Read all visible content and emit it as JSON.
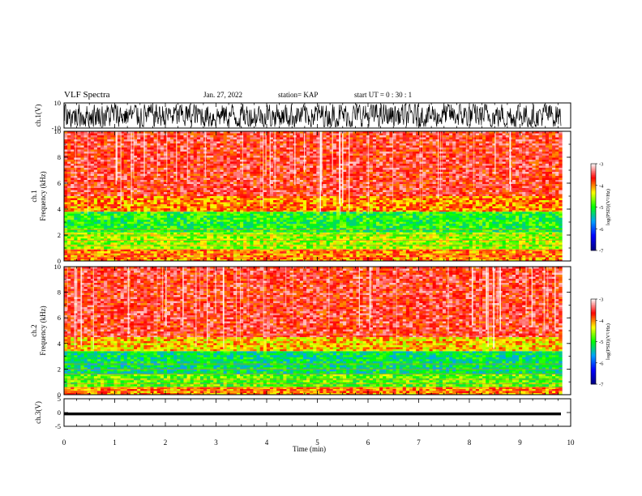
{
  "header": {
    "title": "VLF Spectra",
    "date": "Jan. 27, 2022",
    "station": "station= KAP",
    "start": "start UT =  0 : 30 : 1"
  },
  "chart_data": [
    {
      "type": "line",
      "panel": "ch1-waveform",
      "ylabel": "ch.1(V)",
      "ylim": [
        -10,
        10
      ],
      "yticks": [
        "10",
        "-10"
      ],
      "xlim": [
        0,
        10
      ],
      "description_values": {
        "amplitude_approx": [
          -9,
          9
        ]
      },
      "color": "#000000"
    },
    {
      "type": "heatmap",
      "panel": "ch1-spectrogram",
      "ylabel": "ch.1 Frequency (kHz)",
      "ylim": [
        0,
        10
      ],
      "yticks": [
        "0",
        "2",
        "4",
        "6",
        "8",
        "10"
      ],
      "xlim": [
        0,
        9.83
      ],
      "bands": [
        {
          "fmin": 0,
          "fmax": 0.9,
          "level": -4.0
        },
        {
          "fmin": 0.9,
          "fmax": 2.2,
          "level": -4.6
        },
        {
          "fmin": 2.2,
          "fmax": 3.8,
          "level": -5.0
        },
        {
          "fmin": 3.8,
          "fmax": 5.0,
          "level": -4.0
        },
        {
          "fmin": 5.0,
          "fmax": 10,
          "level": -3.6
        }
      ]
    },
    {
      "type": "heatmap",
      "panel": "ch2-spectrogram",
      "ylabel": "ch.2 Frequency (kHz)",
      "ylim": [
        0,
        10
      ],
      "yticks": [
        "0",
        "2",
        "4",
        "6",
        "8",
        "10"
      ],
      "xlim": [
        0,
        9.83
      ],
      "bands": [
        {
          "fmin": 0,
          "fmax": 0.6,
          "level": -4.0
        },
        {
          "fmin": 0.6,
          "fmax": 1.6,
          "level": -4.8
        },
        {
          "fmin": 1.6,
          "fmax": 3.4,
          "level": -5.2
        },
        {
          "fmin": 3.4,
          "fmax": 4.5,
          "level": -4.2
        },
        {
          "fmin": 4.5,
          "fmax": 10,
          "level": -3.6
        }
      ]
    },
    {
      "type": "line",
      "panel": "ch3-waveform",
      "ylabel": "ch.3(V)",
      "ylim": [
        -5,
        5
      ],
      "yticks": [
        "5",
        "0",
        "-5"
      ],
      "xlim": [
        0,
        10
      ],
      "xticks": [
        "0",
        "1",
        "2",
        "3",
        "4",
        "5",
        "6",
        "7",
        "8",
        "9",
        "10"
      ],
      "xlabel": "Time (min)",
      "description_values": {
        "level": -0.5,
        "band": [
          -1,
          0
        ]
      },
      "color": "#000000"
    }
  ],
  "colorbar": {
    "label": "log(PSD)(V²/Hz)",
    "range": [
      -7,
      -3
    ],
    "ticks": [
      "-3",
      "-4",
      "-5",
      "-6",
      "-7"
    ],
    "stops": [
      "#000080",
      "#0000ff",
      "#00a0ff",
      "#00ff00",
      "#ffff00",
      "#ff0000",
      "#ffffff"
    ]
  }
}
